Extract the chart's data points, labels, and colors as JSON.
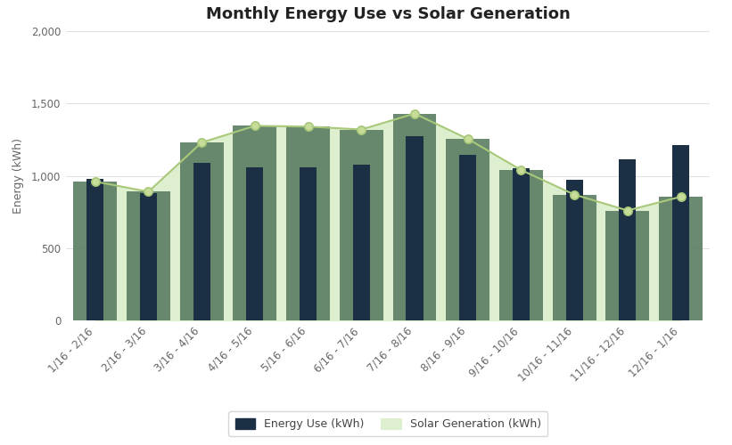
{
  "title": "Monthly Energy Use vs Solar Generation",
  "categories": [
    "1/16 - 2/16",
    "2/16 - 3/16",
    "3/16 - 4/16",
    "4/16 - 5/16",
    "5/16 - 6/16",
    "6/16 - 7/16",
    "7/16 - 8/16",
    "8/16 - 9/16",
    "9/16 - 10/16",
    "10/16 - 11/16",
    "11/16 - 12/16",
    "12/16 - 1/16"
  ],
  "energy_use": [
    980,
    880,
    1090,
    1060,
    1060,
    1080,
    1275,
    1145,
    1050,
    975,
    1115,
    1210
  ],
  "solar_gen": [
    960,
    890,
    1230,
    1345,
    1340,
    1320,
    1430,
    1255,
    1040,
    870,
    760,
    855
  ],
  "bar_color_energy": "#1b2f45",
  "bar_color_solar": "#5a7d62",
  "area_color_solar": "#deefd0",
  "line_color_solar": "#a8c87a",
  "marker_color_solar": "#c8dc9a",
  "ylabel": "Energy (kWh)",
  "ylim": [
    0,
    2000
  ],
  "yticks": [
    0,
    500,
    1000,
    1500,
    2000
  ],
  "background_color": "#ffffff",
  "grid_color": "#e0e0e0",
  "title_fontsize": 13,
  "label_fontsize": 9,
  "tick_fontsize": 8.5,
  "legend_energy_label": "Energy Use (kWh)",
  "legend_solar_label": "Solar Generation (kWh)"
}
